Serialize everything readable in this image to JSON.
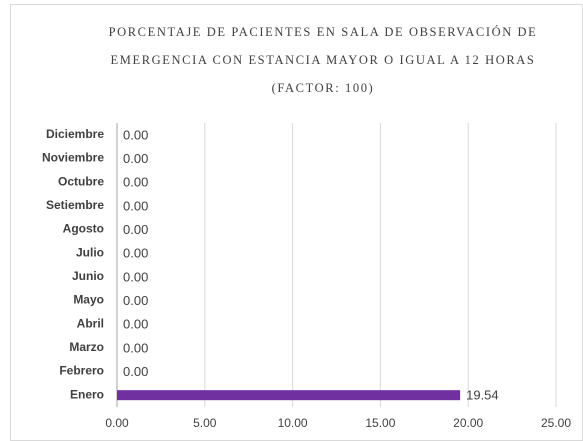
{
  "chart_data": {
    "type": "bar",
    "orientation": "horizontal",
    "title": [
      "PORCENTAJE DE PACIENTES EN SALA DE OBSERVACIÓN DE",
      "EMERGENCIA CON ESTANCIA MAYOR O IGUAL A 12 HORAS"
    ],
    "subtitle": "(FACTOR: 100)",
    "categories": [
      "Enero",
      "Febrero",
      "Marzo",
      "Abril",
      "Mayo",
      "Junio",
      "Julio",
      "Agosto",
      "Setiembre",
      "Octubre",
      "Noviembre",
      "Diciembre"
    ],
    "values": [
      19.54,
      0,
      0,
      0,
      0,
      0,
      0,
      0,
      0,
      0,
      0,
      0
    ],
    "value_labels": [
      "19.54",
      "0.00",
      "0.00",
      "0.00",
      "0.00",
      "0.00",
      "0.00",
      "0.00",
      "0.00",
      "0.00",
      "0.00",
      "0.00"
    ],
    "color": "#7030a0",
    "xlim": [
      0,
      25
    ],
    "xticks": [
      {
        "value": 0,
        "label": "0.00"
      },
      {
        "value": 5,
        "label": "5.00"
      },
      {
        "value": 10,
        "label": "10.00"
      },
      {
        "value": 15,
        "label": "15.00"
      },
      {
        "value": 20,
        "label": "20.00"
      },
      {
        "value": 25,
        "label": "25.00"
      }
    ],
    "grid": true
  }
}
